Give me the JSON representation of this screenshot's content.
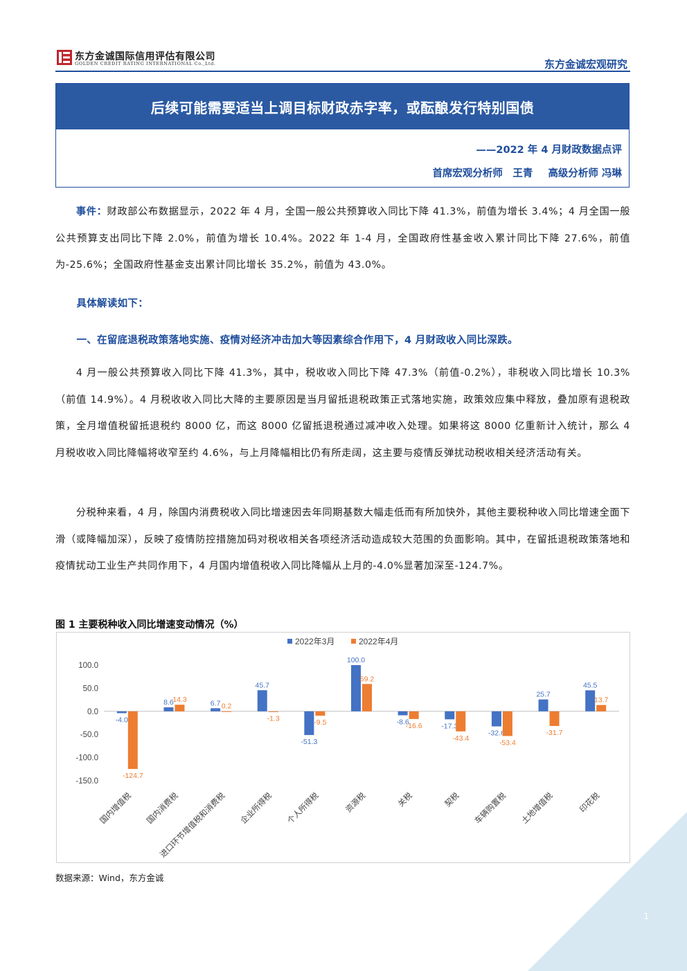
{
  "header": {
    "company_cn": "东方金诚国际信用评估有限公司",
    "company_en": "GOLDEN CREDIT RATING INTERNATIONAL Co.,Ltd.",
    "brand_right": "东方金诚宏观研究",
    "brand_color": "#1f4e9c",
    "logo_icon": "company-logo-icon"
  },
  "report": {
    "title": "后续可能需要适当上调目标财政赤字率，或酝酿发行特别国债",
    "subtitle": "——2022 年 4 月财政数据点评",
    "author1": "首席宏观分析师　王青",
    "author2": "高级分析师 冯琳"
  },
  "body": {
    "event_label": "事件：",
    "event_text": "财政部公布数据显示，2022 年 4 月，全国一般公共预算收入同比下降 41.3%，前值为增长 3.4%；4 月全国一般公共预算支出同比下降 2.0%，前值为增长 10.4%。2022 年 1-4 月，全国政府性基金收入累计同比下降 27.6%，前值为-25.6%；全国政府性基金支出累计同比增长 35.2%，前值为 43.0%。",
    "interpret_label": "具体解读如下：",
    "section1_heading": "一、在留底退税政策落地实施、疫情对经济冲击加大等因素综合作用下，4 月财政收入同比深跌。",
    "para1": "4 月一般公共预算收入同比下降 41.3%，其中，税收收入同比下降 47.3%（前值-0.2%），非税收入同比增长 10.3%（前值 14.9%）。4 月税收收入同比大降的主要原因是当月留抵退税政策正式落地实施，政策效应集中释放，叠加原有退税政策，全月增值税留抵退税约 8000 亿，而这 8000 亿留抵退税通过减冲收入处理。如果将这 8000 亿重新计入统计，那么 4 月税收收入同比降幅将收窄至约 4.6%，与上月降幅相比仍有所走阔，这主要与疫情反弹扰动税收相关经济活动有关。",
    "para2": "分税种来看，4 月，除国内消费税收入同比增速因去年同期基数大幅走低而有所加快外，其他主要税种收入同比增速全面下滑（或降幅加深），反映了疫情防控措施加码对税收相关各项经济活动造成较大范围的负面影响。其中，在留抵退税政策落地和疫情扰动工业生产共同作用下，4 月国内增值税收入同比降幅从上月的-4.0%显著加深至-124.7%。"
  },
  "figure": {
    "title": "图 1 主要税种收入同比增速变动情况（%）",
    "source": "数据来源：Wind，东方金诚"
  },
  "chart_data": {
    "type": "bar",
    "title": "",
    "xlabel": "",
    "ylabel": "",
    "ylim": [
      -150,
      100
    ],
    "yticks": [
      "100.0",
      "50.0",
      "0.0",
      "-50.0",
      "-100.0",
      "-150.0"
    ],
    "ytick_values": [
      100,
      50,
      0,
      -50,
      -100,
      -150
    ],
    "grid": false,
    "legend_position": "top",
    "categories": [
      "国内增值税",
      "国内消费税",
      "进口环节增值税和消费税",
      "企业所得税",
      "个人所得税",
      "资源税",
      "关税",
      "契税",
      "车辆购置税",
      "土地增值税",
      "印花税"
    ],
    "series": [
      {
        "name": "2022年3月",
        "color": "#4472c4",
        "values": [
          -4.0,
          8.6,
          6.7,
          45.7,
          -51.3,
          100.0,
          -8.6,
          -17.3,
          -32.6,
          25.7,
          45.5
        ],
        "labels": [
          "-4.0",
          "8.6",
          "6.7",
          "45.7",
          "-51.3",
          "100.0",
          "-8.6",
          "-17.3",
          "-32.6",
          "25.7",
          "45.5"
        ]
      },
      {
        "name": "2022年4月",
        "color": "#ed7d31",
        "values": [
          -124.7,
          14.3,
          0.2,
          -1.3,
          -9.5,
          59.2,
          -16.6,
          -43.4,
          -53.4,
          -31.7,
          13.7
        ],
        "labels": [
          "-124.7",
          "14.3",
          "0.2",
          "-1.3",
          "-9.5",
          "59.2",
          "-16.6",
          "-43.4",
          "-53.4",
          "-31.7",
          "13.7"
        ]
      }
    ]
  },
  "page": {
    "number": "1"
  },
  "decor": {
    "corner_color": "#d7e8f2"
  }
}
